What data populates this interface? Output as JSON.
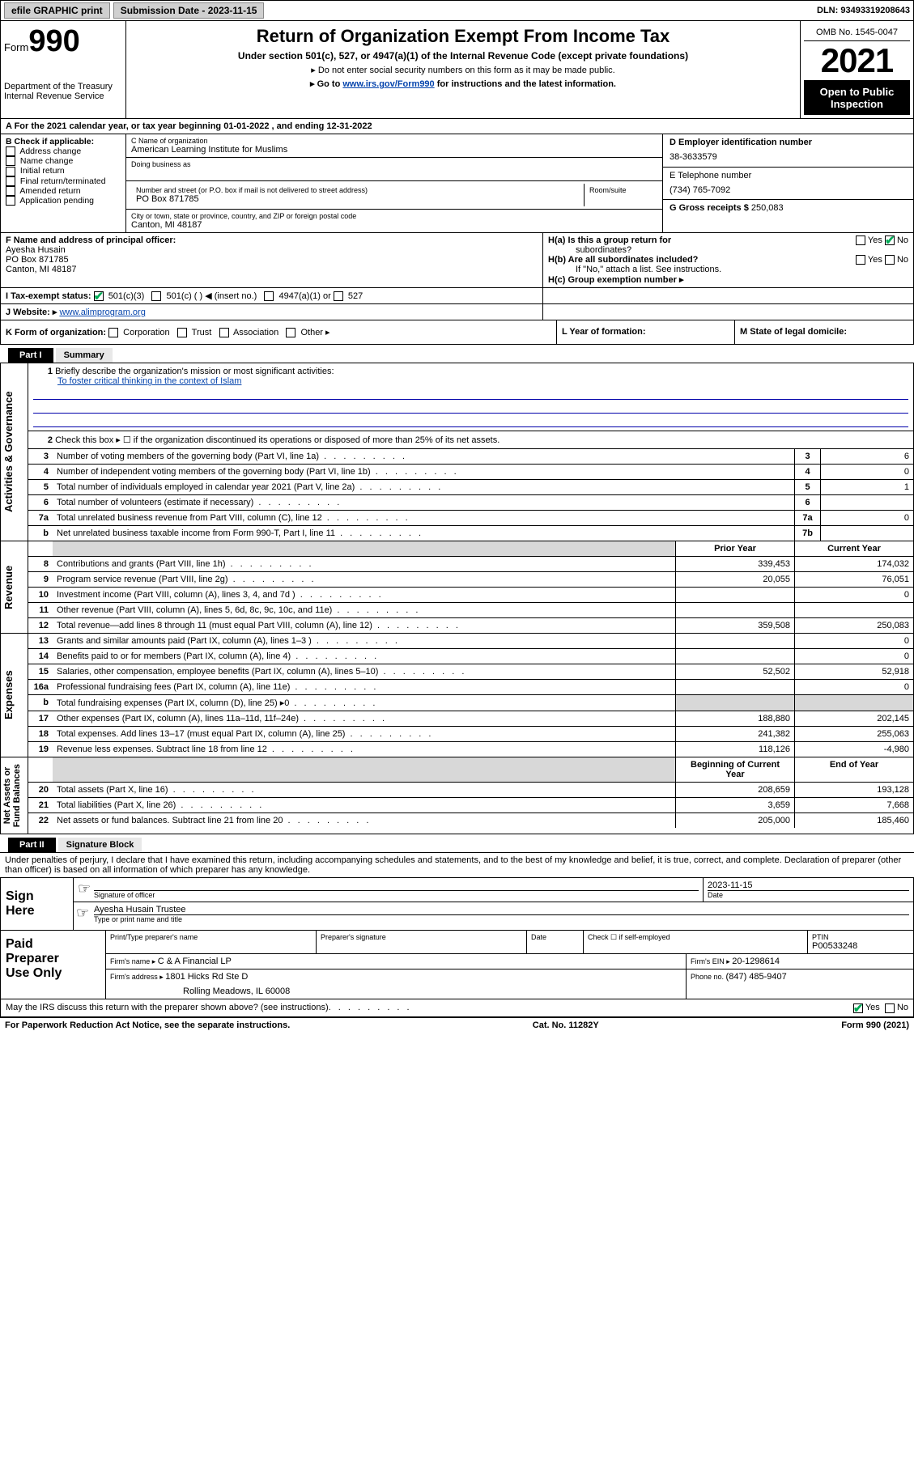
{
  "topbar": {
    "efile": "efile GRAPHIC print",
    "submission_label": "Submission Date - ",
    "submission_date": "2023-11-15",
    "dln_label": "DLN: ",
    "dln": "93493319208643"
  },
  "header": {
    "form_label": "Form",
    "form_no": "990",
    "dept": "Department of the Treasury\nInternal Revenue Service",
    "title": "Return of Organization Exempt From Income Tax",
    "subtitle": "Under section 501(c), 527, or 4947(a)(1) of the Internal Revenue Code (except private foundations)",
    "instr1": "▸ Do not enter social security numbers on this form as it may be made public.",
    "instr2_pre": "▸ Go to ",
    "instr2_link": "www.irs.gov/Form990",
    "instr2_post": " for instructions and the latest information.",
    "omb": "OMB No. 1545-0047",
    "year": "2021",
    "public1": "Open to Public",
    "public2": "Inspection"
  },
  "period": {
    "text_a": "A For the 2021 calendar year, or tax year beginning ",
    "begin": "01-01-2022",
    "text_b": " , and ending ",
    "end": "12-31-2022"
  },
  "sectionB": {
    "b_label": "B Check if applicable:",
    "b_opts": [
      "Address change",
      "Name change",
      "Initial return",
      "Final return/terminated",
      "Amended return",
      "Application pending"
    ],
    "c_label": "C Name of organization",
    "org_name": "American Learning Institute for Muslims",
    "dba_label": "Doing business as",
    "addr_label": "Number and street (or P.O. box if mail is not delivered to street address)",
    "room_label": "Room/suite",
    "address": "PO Box 871785",
    "city_label": "City or town, state or province, country, and ZIP or foreign postal code",
    "city": "Canton, MI  48187",
    "d_label": "D Employer identification number",
    "ein": "38-3633579",
    "e_label": "E Telephone number",
    "phone": "(734) 765-7092",
    "g_label": "G Gross receipts $ ",
    "gross": "250,083"
  },
  "rowF": {
    "f_label": "F Name and address of principal officer:",
    "officer_name": "Ayesha Husain",
    "officer_addr1": "PO Box 871785",
    "officer_addr2": "Canton, MI  48187",
    "ha_label": "H(a)  Is this a group return for",
    "ha_label2": "subordinates?",
    "hb_label": "H(b)  Are all subordinates included?",
    "hb_note": "If \"No,\" attach a list. See instructions.",
    "hc_label": "H(c)  Group exemption number ▸",
    "yes": "Yes",
    "no": "No"
  },
  "rowI": {
    "label": "I   Tax-exempt status:",
    "opt1": "501(c)(3)",
    "opt2": "501(c) (   ) ◀ (insert no.)",
    "opt3": "4947(a)(1) or",
    "opt4": "527"
  },
  "rowJ": {
    "label": "J   Website: ▸ ",
    "url": "www.alimprogram.org"
  },
  "rowK": {
    "k_label": "K Form of organization:",
    "opts": [
      "Corporation",
      "Trust",
      "Association",
      "Other ▸"
    ],
    "l_label": "L Year of formation:",
    "m_label": "M State of legal domicile:"
  },
  "part1": {
    "part": "Part I",
    "title": "Summary"
  },
  "governance": {
    "vlabel": "Activities & Governance",
    "l1_label": "Briefly describe the organization's mission or most significant activities:",
    "l1_text": "To foster critical thinking in the context of Islam",
    "l2_label": "Check this box ▸ ☐  if the organization discontinued its operations or disposed of more than 25% of its net assets.",
    "lines": [
      {
        "n": "3",
        "desc": "Number of voting members of the governing body (Part VI, line 1a)",
        "box": "3",
        "val": "6"
      },
      {
        "n": "4",
        "desc": "Number of independent voting members of the governing body (Part VI, line 1b)",
        "box": "4",
        "val": "0"
      },
      {
        "n": "5",
        "desc": "Total number of individuals employed in calendar year 2021 (Part V, line 2a)",
        "box": "5",
        "val": "1"
      },
      {
        "n": "6",
        "desc": "Total number of volunteers (estimate if necessary)",
        "box": "6",
        "val": ""
      },
      {
        "n": "7a",
        "desc": "Total unrelated business revenue from Part VIII, column (C), line 12",
        "box": "7a",
        "val": "0"
      },
      {
        "n": "b",
        "desc": "Net unrelated business taxable income from Form 990-T, Part I, line 11",
        "box": "7b",
        "val": ""
      }
    ]
  },
  "revenue": {
    "vlabel": "Revenue",
    "hdr_prior": "Prior Year",
    "hdr_curr": "Current Year",
    "lines": [
      {
        "n": "8",
        "desc": "Contributions and grants (Part VIII, line 1h)",
        "prior": "339,453",
        "curr": "174,032"
      },
      {
        "n": "9",
        "desc": "Program service revenue (Part VIII, line 2g)",
        "prior": "20,055",
        "curr": "76,051"
      },
      {
        "n": "10",
        "desc": "Investment income (Part VIII, column (A), lines 3, 4, and 7d )",
        "prior": "",
        "curr": "0"
      },
      {
        "n": "11",
        "desc": "Other revenue (Part VIII, column (A), lines 5, 6d, 8c, 9c, 10c, and 11e)",
        "prior": "",
        "curr": ""
      },
      {
        "n": "12",
        "desc": "Total revenue—add lines 8 through 11 (must equal Part VIII, column (A), line 12)",
        "prior": "359,508",
        "curr": "250,083"
      }
    ]
  },
  "expenses": {
    "vlabel": "Expenses",
    "lines": [
      {
        "n": "13",
        "desc": "Grants and similar amounts paid (Part IX, column (A), lines 1–3 )",
        "prior": "",
        "curr": "0"
      },
      {
        "n": "14",
        "desc": "Benefits paid to or for members (Part IX, column (A), line 4)",
        "prior": "",
        "curr": "0"
      },
      {
        "n": "15",
        "desc": "Salaries, other compensation, employee benefits (Part IX, column (A), lines 5–10)",
        "prior": "52,502",
        "curr": "52,918"
      },
      {
        "n": "16a",
        "desc": "Professional fundraising fees (Part IX, column (A), line 11e)",
        "prior": "",
        "curr": "0"
      },
      {
        "n": "b",
        "desc": "Total fundraising expenses (Part IX, column (D), line 25) ▸0",
        "prior": "shade",
        "curr": "shade"
      },
      {
        "n": "17",
        "desc": "Other expenses (Part IX, column (A), lines 11a–11d, 11f–24e)",
        "prior": "188,880",
        "curr": "202,145"
      },
      {
        "n": "18",
        "desc": "Total expenses. Add lines 13–17 (must equal Part IX, column (A), line 25)",
        "prior": "241,382",
        "curr": "255,063"
      },
      {
        "n": "19",
        "desc": "Revenue less expenses. Subtract line 18 from line 12",
        "prior": "118,126",
        "curr": "-4,980"
      }
    ]
  },
  "netassets": {
    "vlabel": "Net Assets or\nFund Balances",
    "hdr_prior": "Beginning of Current Year",
    "hdr_curr": "End of Year",
    "lines": [
      {
        "n": "20",
        "desc": "Total assets (Part X, line 16)",
        "prior": "208,659",
        "curr": "193,128"
      },
      {
        "n": "21",
        "desc": "Total liabilities (Part X, line 26)",
        "prior": "3,659",
        "curr": "7,668"
      },
      {
        "n": "22",
        "desc": "Net assets or fund balances. Subtract line 21 from line 20",
        "prior": "205,000",
        "curr": "185,460"
      }
    ]
  },
  "part2": {
    "part": "Part II",
    "title": "Signature Block",
    "declaration": "Under penalties of perjury, I declare that I have examined this return, including accompanying schedules and statements, and to the best of my knowledge and belief, it is true, correct, and complete. Declaration of preparer (other than officer) is based on all information of which preparer has any knowledge."
  },
  "sign": {
    "label": "Sign\nHere",
    "sig_label": "Signature of officer",
    "date_label": "Date",
    "date_val": "2023-11-15",
    "name_title": "Ayesha Husain  Trustee",
    "type_label": "Type or print name and title"
  },
  "preparer": {
    "label": "Paid\nPreparer\nUse Only",
    "h1": "Print/Type preparer's name",
    "h2": "Preparer's signature",
    "h3": "Date",
    "h4_pre": "Check ☐ if self-employed",
    "h5": "PTIN",
    "ptin": "P00533248",
    "firm_label": "Firm's name    ▸ ",
    "firm_name": "C & A Financial LP",
    "ein_label": "Firm's EIN ▸ ",
    "firm_ein": "20-1298614",
    "addr_label": "Firm's address ▸ ",
    "firm_addr1": "1801 Hicks Rd Ste D",
    "firm_addr2": "Rolling Meadows, IL  60008",
    "phone_label": "Phone no. ",
    "firm_phone": "(847) 485-9407"
  },
  "footer": {
    "discuss": "May the IRS discuss this return with the preparer shown above? (see instructions)",
    "yes": "Yes",
    "no": "No",
    "paperwork": "For Paperwork Reduction Act Notice, see the separate instructions.",
    "cat": "Cat. No. 11282Y",
    "form": "Form 990 (2021)"
  }
}
